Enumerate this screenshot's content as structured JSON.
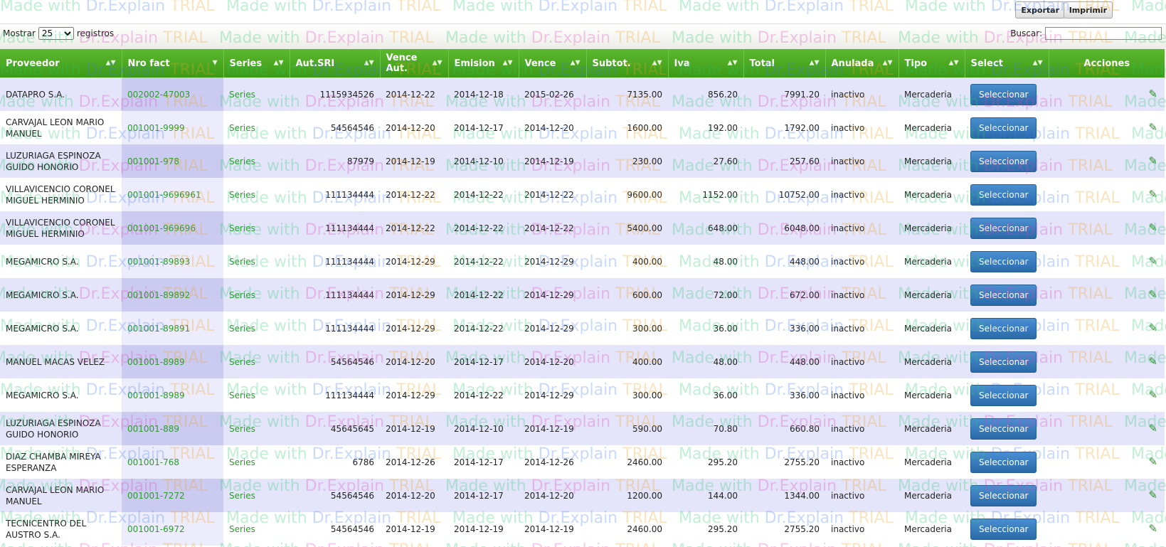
{
  "toolbar": {
    "export_label": "Exportar",
    "print_label": "Imprimir"
  },
  "length": {
    "prefix": "Mostrar",
    "selected": "25",
    "suffix": "registros"
  },
  "search": {
    "label": "Buscar:",
    "value": ""
  },
  "watermark": {
    "text": "Made with Dr.Explain TRIAL"
  },
  "columns": [
    "Proveedor",
    "Nro fact",
    "Series",
    "Aut.SRI",
    "Vence Aut.",
    "Emision",
    "Vence",
    "Subtot.",
    "Iva",
    "Total",
    "Anulada",
    "Tipo",
    "Select",
    "Acciones"
  ],
  "rows": [
    {
      "proveedor": "DATAPRO S.A.",
      "nro": "002002-47003",
      "series": "Series",
      "aut": "1115934526",
      "vence_aut": "2014-12-22",
      "emision": "2014-12-18",
      "vence": "2015-02-26",
      "subtot": "7135.00",
      "iva": "856.20",
      "total": "7991.20",
      "anulada": "inactivo",
      "tipo": "Mercaderia",
      "select": "Seleccionar"
    },
    {
      "proveedor": "CARVAJAL LEON MARIO MANUEL",
      "nro": "001001-9999",
      "series": "Series",
      "aut": "54564546",
      "vence_aut": "2014-12-20",
      "emision": "2014-12-17",
      "vence": "2014-12-20",
      "subtot": "1600.00",
      "iva": "192.00",
      "total": "1792.00",
      "anulada": "inactivo",
      "tipo": "Mercaderia",
      "select": "Seleccionar"
    },
    {
      "proveedor": "LUZURIAGA ESPINOZA GUIDO HONORIO",
      "nro": "001001-978",
      "series": "Series",
      "aut": "87979",
      "vence_aut": "2014-12-19",
      "emision": "2014-12-10",
      "vence": "2014-12-19",
      "subtot": "230.00",
      "iva": "27.60",
      "total": "257.60",
      "anulada": "inactivo",
      "tipo": "Mercaderia",
      "select": "Seleccionar"
    },
    {
      "proveedor": "VILLAVICENCIO CORONEL MIGUEL HERMINIO",
      "nro": "001001-9696961",
      "series": "Series",
      "aut": "111134444",
      "vence_aut": "2014-12-22",
      "emision": "2014-12-22",
      "vence": "2014-12-22",
      "subtot": "9600.00",
      "iva": "1152.00",
      "total": "10752.00",
      "anulada": "inactivo",
      "tipo": "Mercaderia",
      "select": "Seleccionar"
    },
    {
      "proveedor": "VILLAVICENCIO CORONEL MIGUEL HERMINIO",
      "nro": "001001-969696",
      "series": "Series",
      "aut": "111134444",
      "vence_aut": "2014-12-22",
      "emision": "2014-12-22",
      "vence": "2014-12-22",
      "subtot": "5400.00",
      "iva": "648.00",
      "total": "6048.00",
      "anulada": "inactivo",
      "tipo": "Mercaderia",
      "select": "Seleccionar"
    },
    {
      "proveedor": "MEGAMICRO S.A.",
      "nro": "001001-89893",
      "series": "Series",
      "aut": "111134444",
      "vence_aut": "2014-12-29",
      "emision": "2014-12-22",
      "vence": "2014-12-29",
      "subtot": "400.00",
      "iva": "48.00",
      "total": "448.00",
      "anulada": "inactivo",
      "tipo": "Mercaderia",
      "select": "Seleccionar"
    },
    {
      "proveedor": "MEGAMICRO S.A.",
      "nro": "001001-89892",
      "series": "Series",
      "aut": "111134444",
      "vence_aut": "2014-12-29",
      "emision": "2014-12-22",
      "vence": "2014-12-29",
      "subtot": "600.00",
      "iva": "72.00",
      "total": "672.00",
      "anulada": "inactivo",
      "tipo": "Mercaderia",
      "select": "Seleccionar"
    },
    {
      "proveedor": "MEGAMICRO S.A.",
      "nro": "001001-89891",
      "series": "Series",
      "aut": "111134444",
      "vence_aut": "2014-12-29",
      "emision": "2014-12-22",
      "vence": "2014-12-29",
      "subtot": "300.00",
      "iva": "36.00",
      "total": "336.00",
      "anulada": "inactivo",
      "tipo": "Mercaderia",
      "select": "Seleccionar"
    },
    {
      "proveedor": "MANUEL MACAS VELEZ",
      "nro": "001001-8989",
      "series": "Series",
      "aut": "54564546",
      "vence_aut": "2014-12-20",
      "emision": "2014-12-17",
      "vence": "2014-12-20",
      "subtot": "400.00",
      "iva": "48.00",
      "total": "448.00",
      "anulada": "inactivo",
      "tipo": "Mercaderia",
      "select": "Seleccionar"
    },
    {
      "proveedor": "MEGAMICRO S.A.",
      "nro": "001001-8989",
      "series": "Series",
      "aut": "111134444",
      "vence_aut": "2014-12-29",
      "emision": "2014-12-22",
      "vence": "2014-12-29",
      "subtot": "300.00",
      "iva": "36.00",
      "total": "336.00",
      "anulada": "inactivo",
      "tipo": "Mercaderia",
      "select": "Seleccionar"
    },
    {
      "proveedor": "LUZURIAGA ESPINOZA GUIDO HONORIO",
      "nro": "001001-889",
      "series": "Series",
      "aut": "45645645",
      "vence_aut": "2014-12-19",
      "emision": "2014-12-10",
      "vence": "2014-12-19",
      "subtot": "590.00",
      "iva": "70.80",
      "total": "660.80",
      "anulada": "inactivo",
      "tipo": "Mercaderia",
      "select": "Seleccionar"
    },
    {
      "proveedor": "DIAZ CHAMBA MIREYA ESPERANZA",
      "nro": "001001-768",
      "series": "Series",
      "aut": "6786",
      "vence_aut": "2014-12-26",
      "emision": "2014-12-17",
      "vence": "2014-12-26",
      "subtot": "2460.00",
      "iva": "295.20",
      "total": "2755.20",
      "anulada": "inactivo",
      "tipo": "Mercaderia",
      "select": "Seleccionar"
    },
    {
      "proveedor": "CARVAJAL LEON MARIO MANUEL",
      "nro": "001001-7272",
      "series": "Series",
      "aut": "54564546",
      "vence_aut": "2014-12-20",
      "emision": "2014-12-17",
      "vence": "2014-12-20",
      "subtot": "1200.00",
      "iva": "144.00",
      "total": "1344.00",
      "anulada": "inactivo",
      "tipo": "Mercaderia",
      "select": "Seleccionar"
    },
    {
      "proveedor": "TECNICENTRO DEL AUSTRO S.A.",
      "nro": "001001-6972",
      "series": "Series",
      "aut": "54564546",
      "vence_aut": "2014-12-19",
      "emision": "2014-12-19",
      "vence": "2014-12-19",
      "subtot": "2460.00",
      "iva": "295.20",
      "total": "2755.20",
      "anulada": "inactivo",
      "tipo": "Mercaderia",
      "select": "Seleccionar"
    }
  ]
}
